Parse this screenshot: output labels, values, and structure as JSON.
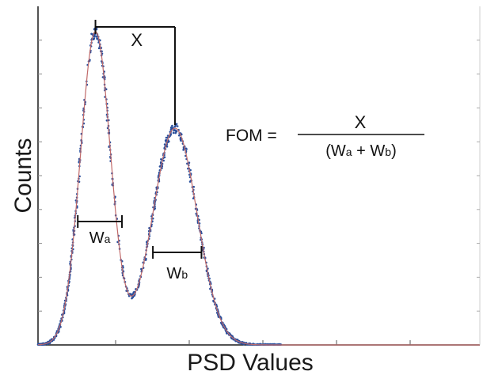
{
  "chart_data": {
    "type": "scatter",
    "title": "",
    "xlabel": "PSD Values",
    "ylabel": "Counts",
    "xlim": [
      0,
      1
    ],
    "ylim": [
      0,
      1
    ],
    "grid": false,
    "axis_tick_labels": false,
    "peaks": [
      {
        "center": 0.13,
        "width": 0.034,
        "height": 0.925
      },
      {
        "center": 0.31,
        "width": 0.05,
        "height": 0.64
      }
    ],
    "annotations": {
      "peak_separation": {
        "label": "X",
        "from_x": 0.13,
        "to_x": 0.31
      },
      "width_a": {
        "label": "Wa",
        "base": "W",
        "sub": "a",
        "x1": 0.09,
        "x2": 0.19
      },
      "width_b": {
        "label": "Wb",
        "base": "W",
        "sub": "b",
        "x1": 0.26,
        "x2": 0.37
      },
      "formula": {
        "lhs": "FOM =",
        "numerator": "X",
        "denominator_parts": [
          "(W",
          "a",
          " + W",
          "b",
          ")"
        ]
      }
    },
    "colors": {
      "points": "#2a4f9c",
      "fit_line": "#c06a6a",
      "axis": "#1a1a1a",
      "baseline": "#b24747"
    }
  }
}
